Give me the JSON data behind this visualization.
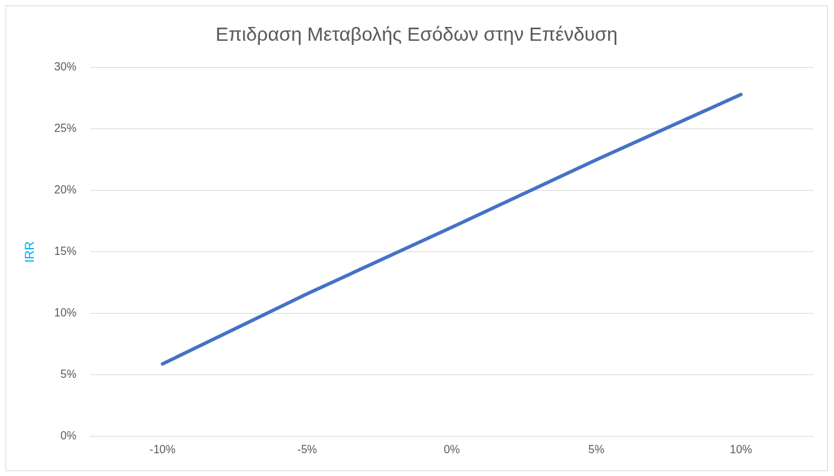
{
  "chart_data": {
    "type": "line",
    "title": "Επιδραση Μεταβολής Εσόδων στην Επένδυση",
    "ylabel": "IRR",
    "categories": [
      "-10%",
      "-5%",
      "0%",
      "5%",
      "10%"
    ],
    "series": [
      {
        "color": "#4472c4",
        "values": [
          5.9,
          11.6,
          17.0,
          22.5,
          27.8
        ]
      }
    ],
    "ylim": [
      0,
      30
    ],
    "yticks": [
      {
        "value": 0,
        "label": "0%"
      },
      {
        "value": 5,
        "label": "5%"
      },
      {
        "value": 10,
        "label": "10%"
      },
      {
        "value": 15,
        "label": "15%"
      },
      {
        "value": 20,
        "label": "20%"
      },
      {
        "value": 25,
        "label": "25%"
      },
      {
        "value": 30,
        "label": "30%"
      }
    ],
    "grid": "y",
    "legend": false,
    "marker": "none",
    "line_style": "solid"
  }
}
